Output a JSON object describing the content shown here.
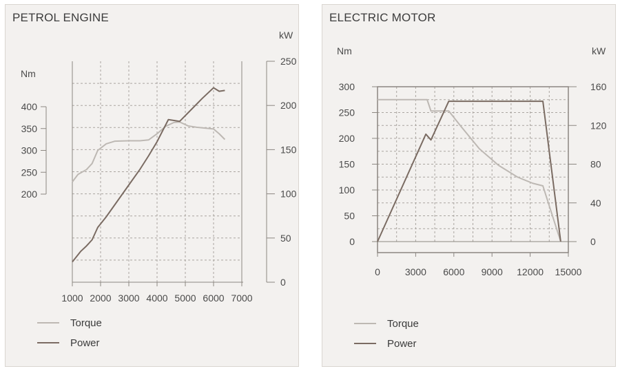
{
  "colors": {
    "torque": "#bdb8b3",
    "power": "#7a6b62",
    "axis": "#8b8680",
    "text": "#4a4a4a",
    "grid": "#a9a49f"
  },
  "chart_data": [
    {
      "type": "line",
      "title": "PETROL ENGINE",
      "left_axis_label": "Nm",
      "right_axis_label": "kW",
      "xlim": [
        1000,
        7000
      ],
      "x_ticks": [
        1000,
        2000,
        3000,
        4000,
        5000,
        6000,
        7000
      ],
      "left_ylim": [
        200,
        400
      ],
      "left_ticks": [
        200,
        250,
        300,
        350,
        400
      ],
      "right_ylim": [
        0,
        250
      ],
      "right_ticks": [
        0,
        50,
        100,
        150,
        200,
        250
      ],
      "series": [
        {
          "name": "Torque",
          "axis": "left",
          "x": [
            1000,
            1200,
            1500,
            1700,
            1900,
            2200,
            2500,
            3000,
            3400,
            3700,
            4000,
            4300,
            4600,
            4800,
            5100,
            5400,
            5700,
            6000,
            6200,
            6400
          ],
          "y": [
            228,
            245,
            256,
            270,
            300,
            315,
            321,
            322,
            322,
            324,
            338,
            355,
            364,
            365,
            356,
            353,
            351,
            349,
            338,
            325
          ]
        },
        {
          "name": "Power",
          "axis": "right",
          "x": [
            1000,
            1300,
            1500,
            1700,
            1900,
            2200,
            2600,
            3000,
            3400,
            3700,
            4000,
            4400,
            4800,
            5200,
            5600,
            6000,
            6200,
            6400
          ],
          "y": [
            23,
            35,
            41,
            48,
            62,
            74,
            92,
            110,
            128,
            143,
            159,
            184,
            182,
            195,
            208,
            220,
            216,
            217
          ]
        }
      ],
      "legend": {
        "placement": "bottom-left",
        "entries": [
          "Torque",
          "Power"
        ]
      }
    },
    {
      "type": "line",
      "title": "ELECTRIC MOTOR",
      "left_axis_label": "Nm",
      "right_axis_label": "kW",
      "xlim": [
        0,
        15000
      ],
      "x_ticks": [
        0,
        3000,
        6000,
        9000,
        12000,
        15000
      ],
      "left_ylim": [
        0,
        300
      ],
      "left_ticks": [
        0,
        50,
        100,
        150,
        200,
        250,
        300
      ],
      "right_ylim": [
        0,
        160
      ],
      "right_ticks": [
        0,
        40,
        80,
        120,
        160
      ],
      "series": [
        {
          "name": "Torque",
          "axis": "left",
          "x": [
            0,
            3900,
            4200,
            4500,
            5600,
            6500,
            8000,
            9500,
            11000,
            12200,
            13000,
            14400
          ],
          "y": [
            275,
            275,
            253,
            253,
            253,
            225,
            180,
            148,
            125,
            113,
            108,
            0
          ]
        },
        {
          "name": "Power",
          "axis": "right",
          "x": [
            0,
            3800,
            4200,
            5600,
            13000,
            14400
          ],
          "y": [
            0,
            111,
            105,
            145,
            145,
            0
          ]
        }
      ],
      "legend": {
        "placement": "bottom-left",
        "entries": [
          "Torque",
          "Power"
        ]
      }
    }
  ]
}
